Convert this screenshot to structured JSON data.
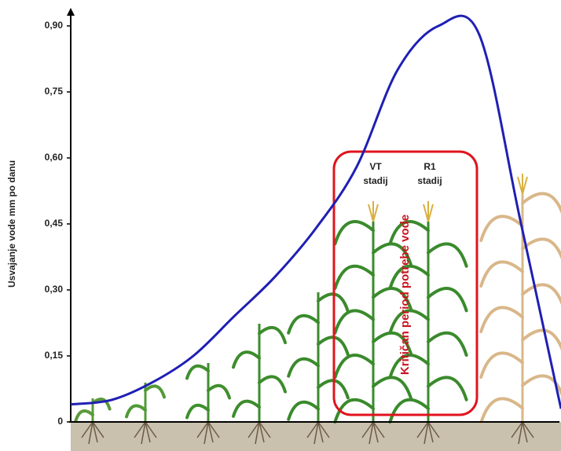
{
  "chart_data": {
    "type": "line",
    "y_label": "Usvajanje vode  mm po danu",
    "categories": [
      null,
      null,
      null,
      null,
      null,
      null,
      null,
      null,
      null,
      null,
      null,
      null,
      null
    ],
    "series": [
      {
        "color": "#1f1fb4",
        "values": [
          0.04,
          0.05,
          0.09,
          0.15,
          0.24,
          0.33,
          0.44,
          0.58,
          0.8,
          0.9,
          0.88,
          0.46,
          0.03
        ]
      }
    ],
    "ylim": [
      0,
      0.9
    ],
    "yticks": [
      0,
      {
        "value": 0.15,
        "label": "0,15"
      },
      {
        "value": 0.3,
        "label": "0,30"
      },
      {
        "value": 0.45,
        "label": "0,45"
      },
      {
        "value": 0.6,
        "label": "0,60"
      },
      {
        "value": 0.75,
        "label": "0,75"
      },
      {
        "value": 0.9,
        "label": "0,90"
      }
    ],
    "stage_labels": [
      [
        "VT",
        "stadij"
      ],
      [
        "R1",
        "stadij"
      ]
    ],
    "critical_period": "Kritičan period potrebe vode"
  }
}
